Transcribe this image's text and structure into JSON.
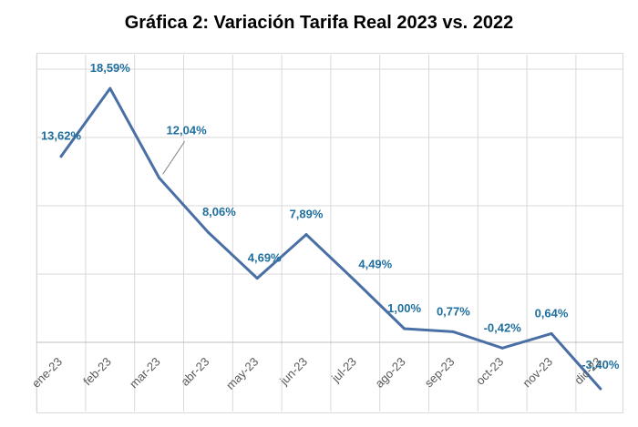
{
  "chart_data": {
    "type": "line",
    "title": "Gráfica 2: Variación Tarifa Real 2023 vs. 2022",
    "xlabel": "",
    "ylabel": "",
    "categories": [
      "ene-23",
      "feb-23",
      "mar-23",
      "abr-23",
      "may-23",
      "jun-23",
      "jul-23",
      "ago-23",
      "sep-23",
      "oct-23",
      "nov-23",
      "dic-23"
    ],
    "series": [
      {
        "values": [
          13.62,
          18.59,
          12.04,
          8.06,
          4.69,
          7.89,
          4.49,
          1.0,
          0.77,
          -0.42,
          0.64,
          -3.4
        ],
        "labels": [
          "13,62%",
          "18,59%",
          "12,04%",
          "8,06%",
          "4,69%",
          "7,89%",
          "4,49%",
          "1,00%",
          "0,77%",
          "-0,42%",
          "0,64%",
          "-3,40%"
        ],
        "color": "#4a6fa5"
      }
    ],
    "grid": true,
    "legend": "none"
  }
}
